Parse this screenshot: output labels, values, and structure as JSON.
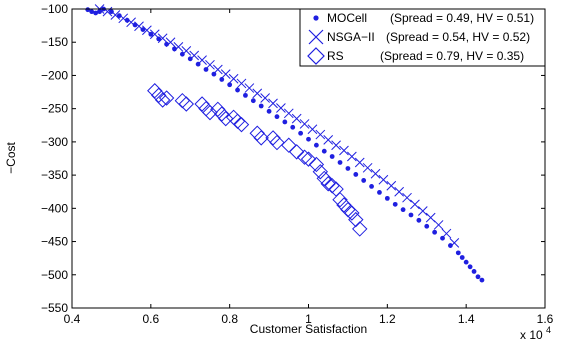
{
  "chart_data": {
    "type": "scatter",
    "xlabel": "Customer Satisfaction",
    "ylabel": "−Cost",
    "x_multiplier_label": "x 10",
    "x_multiplier_exp": "4",
    "xlim": [
      0.4,
      1.6
    ],
    "ylim": [
      -550,
      -100
    ],
    "x_ticks": [
      0.4,
      0.6,
      0.8,
      1.0,
      1.2,
      1.4,
      1.6
    ],
    "x_tick_labels": [
      "0.4",
      "0.6",
      "0.8",
      "1",
      "1.2",
      "1.4",
      "1.6"
    ],
    "y_ticks": [
      -100,
      -150,
      -200,
      -250,
      -300,
      -350,
      -400,
      -450,
      -500,
      -550
    ],
    "y_tick_labels": [
      "−100",
      "−150",
      "−200",
      "−250",
      "−300",
      "−350",
      "−400",
      "−450",
      "−500",
      "−550"
    ],
    "grid": false,
    "legend_position": "top-right",
    "series_color": "#1f1fe0",
    "series": [
      {
        "name": "MOCell",
        "stats": "(Spread = 0.49, HV = 0.51)",
        "marker": "dot",
        "x": [
          0.44,
          0.45,
          0.46,
          0.47,
          0.48,
          0.5,
          0.52,
          0.54,
          0.56,
          0.58,
          0.6,
          0.62,
          0.64,
          0.66,
          0.68,
          0.7,
          0.72,
          0.74,
          0.76,
          0.78,
          0.8,
          0.82,
          0.84,
          0.86,
          0.88,
          0.9,
          0.92,
          0.94,
          0.96,
          0.98,
          1.0,
          1.02,
          1.04,
          1.06,
          1.08,
          1.1,
          1.12,
          1.14,
          1.16,
          1.18,
          1.2,
          1.22,
          1.24,
          1.26,
          1.28,
          1.3,
          1.32,
          1.34,
          1.36,
          1.38,
          1.39,
          1.4,
          1.41,
          1.42,
          1.43,
          1.44
        ],
        "y": [
          -101,
          -104,
          -106,
          -104,
          -100,
          -104,
          -110,
          -117,
          -124,
          -131,
          -138,
          -145,
          -153,
          -160,
          -168,
          -175,
          -183,
          -191,
          -198,
          -206,
          -214,
          -222,
          -230,
          -238,
          -246,
          -254,
          -262,
          -270,
          -278,
          -287,
          -296,
          -305,
          -314,
          -322,
          -331,
          -340,
          -349,
          -358,
          -367,
          -376,
          -385,
          -394,
          -402,
          -410,
          -418,
          -427,
          -436,
          -445,
          -456,
          -467,
          -474,
          -481,
          -488,
          -495,
          -503,
          -508
        ]
      },
      {
        "name": "NSGA−II",
        "stats": "(Spread = 0.54, HV = 0.52)",
        "marker": "x",
        "x": [
          0.47,
          0.49,
          0.51,
          0.53,
          0.55,
          0.57,
          0.59,
          0.61,
          0.63,
          0.65,
          0.67,
          0.69,
          0.71,
          0.73,
          0.75,
          0.77,
          0.79,
          0.81,
          0.83,
          0.85,
          0.87,
          0.89,
          0.91,
          0.93,
          0.95,
          0.97,
          0.99,
          1.01,
          1.03,
          1.05,
          1.07,
          1.09,
          1.11,
          1.13,
          1.15,
          1.17,
          1.19,
          1.21,
          1.23,
          1.25,
          1.27,
          1.29,
          1.31,
          1.33,
          1.35,
          1.37
        ],
        "y": [
          -100,
          -104,
          -109,
          -114,
          -120,
          -126,
          -132,
          -138,
          -144,
          -150,
          -157,
          -163,
          -170,
          -177,
          -184,
          -191,
          -198,
          -205,
          -212,
          -219,
          -227,
          -234,
          -242,
          -249,
          -257,
          -265,
          -273,
          -281,
          -289,
          -297,
          -305,
          -313,
          -322,
          -331,
          -339,
          -348,
          -357,
          -366,
          -375,
          -384,
          -394,
          -404,
          -414,
          -425,
          -438,
          -452
        ]
      },
      {
        "name": "RS",
        "stats": "(Spread = 0.79, HV = 0.35)",
        "marker": "diamond",
        "x": [
          0.61,
          0.62,
          0.63,
          0.64,
          0.68,
          0.69,
          0.73,
          0.74,
          0.75,
          0.77,
          0.78,
          0.79,
          0.81,
          0.82,
          0.83,
          0.87,
          0.88,
          0.91,
          0.92,
          0.95,
          0.97,
          0.99,
          1.0,
          1.02,
          1.03,
          1.04,
          1.05,
          1.06,
          1.07,
          1.08,
          1.09,
          1.1,
          1.11,
          1.12,
          1.13
        ],
        "y": [
          -223,
          -230,
          -237,
          -234,
          -238,
          -243,
          -243,
          -250,
          -256,
          -251,
          -258,
          -265,
          -263,
          -269,
          -274,
          -287,
          -294,
          -294,
          -301,
          -305,
          -315,
          -323,
          -326,
          -334,
          -345,
          -355,
          -363,
          -366,
          -371,
          -387,
          -395,
          -402,
          -407,
          -417,
          -431
        ]
      }
    ]
  }
}
